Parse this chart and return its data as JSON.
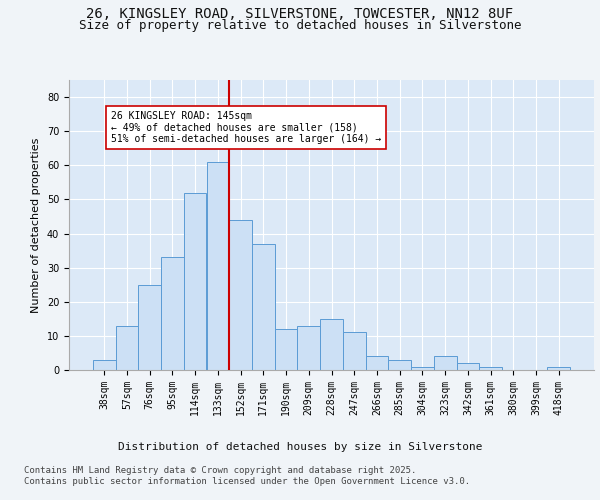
{
  "title_line1": "26, KINGSLEY ROAD, SILVERSTONE, TOWCESTER, NN12 8UF",
  "title_line2": "Size of property relative to detached houses in Silverstone",
  "xlabel": "Distribution of detached houses by size in Silverstone",
  "ylabel": "Number of detached properties",
  "bar_color": "#cce0f5",
  "bar_edge_color": "#5b9bd5",
  "bg_color": "#dce9f7",
  "grid_color": "#ffffff",
  "categories": [
    "38sqm",
    "57sqm",
    "76sqm",
    "95sqm",
    "114sqm",
    "133sqm",
    "152sqm",
    "171sqm",
    "190sqm",
    "209sqm",
    "228sqm",
    "247sqm",
    "266sqm",
    "285sqm",
    "304sqm",
    "323sqm",
    "342sqm",
    "361sqm",
    "380sqm",
    "399sqm",
    "418sqm"
  ],
  "values": [
    3,
    13,
    25,
    33,
    52,
    61,
    44,
    37,
    12,
    13,
    15,
    11,
    4,
    3,
    1,
    4,
    2,
    1,
    0,
    0,
    1
  ],
  "vline_x": 5.5,
  "vline_color": "#cc0000",
  "annotation_text": "26 KINGSLEY ROAD: 145sqm\n← 49% of detached houses are smaller (158)\n51% of semi-detached houses are larger (164) →",
  "annotation_box_color": "#ffffff",
  "annotation_box_edge": "#cc0000",
  "ylim": [
    0,
    85
  ],
  "yticks": [
    0,
    10,
    20,
    30,
    40,
    50,
    60,
    70,
    80
  ],
  "footer_line1": "Contains HM Land Registry data © Crown copyright and database right 2025.",
  "footer_line2": "Contains public sector information licensed under the Open Government Licence v3.0.",
  "title_fontsize": 10,
  "subtitle_fontsize": 9,
  "axis_label_fontsize": 8,
  "tick_fontsize": 7,
  "annot_fontsize": 7,
  "footer_fontsize": 6.5
}
